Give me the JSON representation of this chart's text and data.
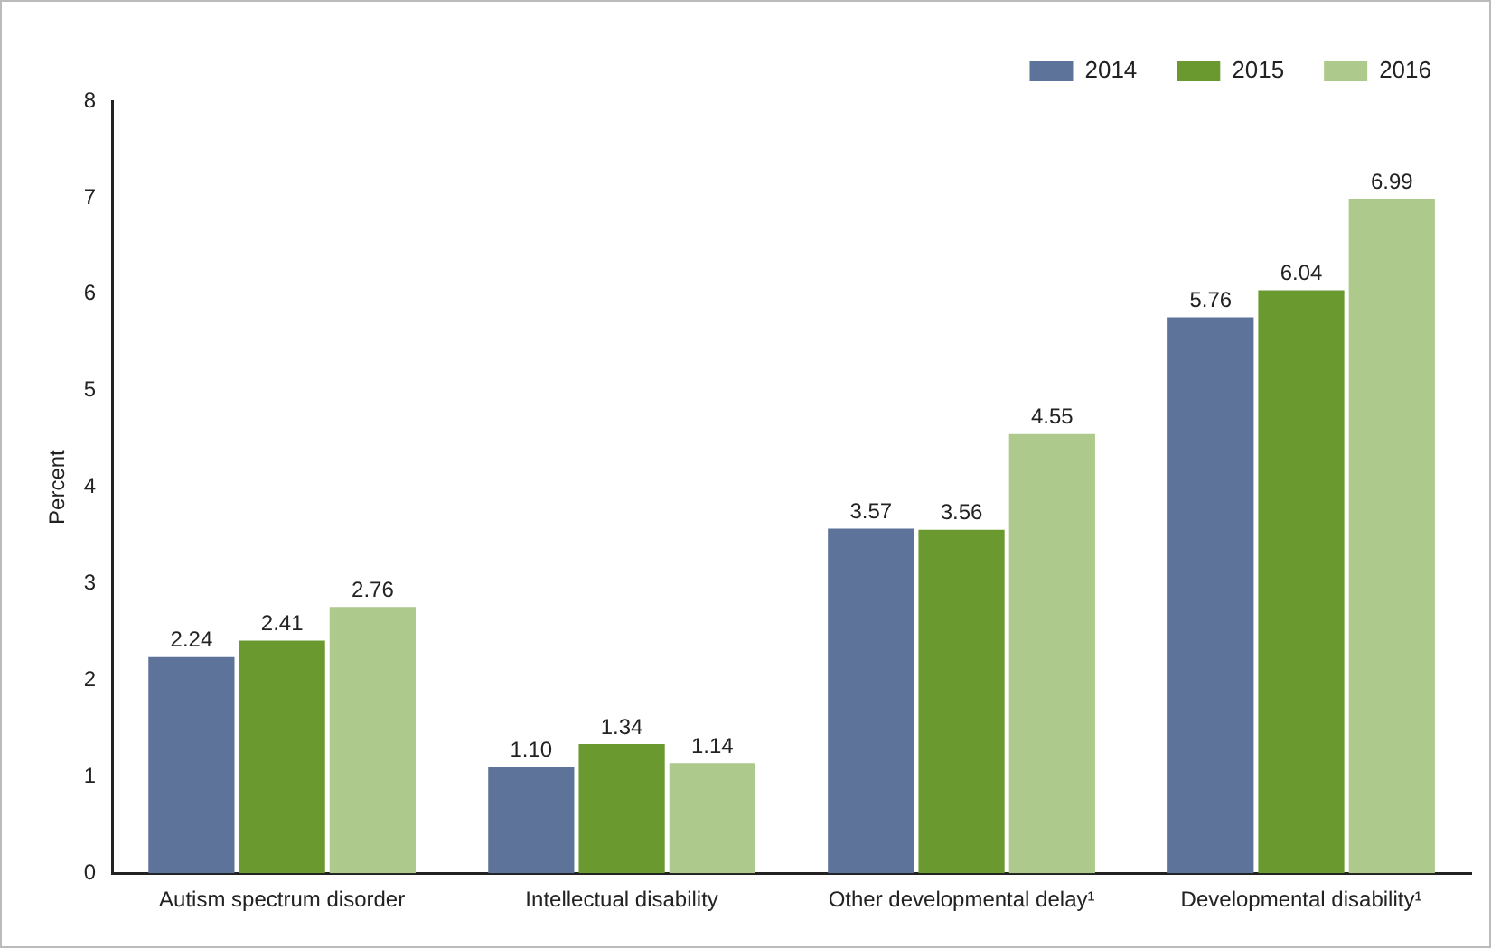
{
  "chart_data": {
    "type": "bar",
    "ylabel": "Percent",
    "categories": [
      "Autism spectrum disorder",
      "Intellectual disability",
      "Other developmental delay¹",
      "Developmental disability¹"
    ],
    "series": [
      {
        "name": "2014",
        "color": "#5e7399",
        "values": [
          2.24,
          1.1,
          3.57,
          5.76
        ],
        "value_labels": [
          "2.24",
          "1.10",
          "3.57",
          "5.76"
        ]
      },
      {
        "name": "2015",
        "color": "#6a9a2f",
        "values": [
          2.41,
          1.34,
          3.56,
          6.04
        ],
        "value_labels": [
          "2.41",
          "1.34",
          "3.56",
          "6.04"
        ]
      },
      {
        "name": "2016",
        "color": "#adc98b",
        "values": [
          2.76,
          1.14,
          4.55,
          6.99
        ],
        "value_labels": [
          "2.76",
          "1.14",
          "4.55",
          "6.99"
        ]
      }
    ],
    "ylim": [
      0,
      8
    ],
    "yticks": [
      0,
      1,
      2,
      3,
      4,
      5,
      6,
      7,
      8
    ],
    "grid": false,
    "legend": "top right"
  }
}
